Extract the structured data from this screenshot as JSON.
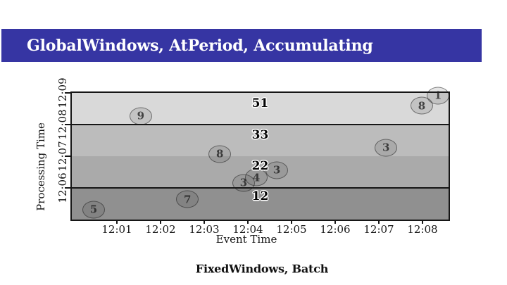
{
  "slide": {
    "title": "GlobalWindows, AtPeriod, Accumulating",
    "caption": "FixedWindows, Batch"
  },
  "theme": {
    "banner_color": "#3635a3",
    "line_color": "#161616",
    "background": "#ffffff"
  },
  "chart_data": {
    "type": "scatter",
    "xlabel": "Event Time",
    "ylabel": "Processing Time",
    "x_ticks": [
      "12:01",
      "12:02",
      "12:03",
      "12:04",
      "12:05",
      "12:06",
      "12:07",
      "12:08"
    ],
    "y_ticks": [
      "12:09",
      "12:08",
      "12:07",
      "12:06"
    ],
    "x_range": [
      "12:00",
      "12:08.6"
    ],
    "y_range": [
      "12:05",
      "12:09"
    ],
    "grid": "off",
    "panes": [
      {
        "sum": "51",
        "processing_span": "12:08–12:09",
        "color": "#d9d9d9",
        "label_fy": 0.083
      },
      {
        "sum": "33",
        "processing_span": "12:07–12:08",
        "color": "#bcbcbc",
        "label_fy": 0.333
      },
      {
        "sum": "22",
        "processing_span": "12:06–12:07",
        "color": "#aaaaaa",
        "label_fy": 0.578
      },
      {
        "sum": "12",
        "processing_span": "12:05–12:06",
        "color": "#909090",
        "label_fy": 0.817
      }
    ],
    "points": [
      {
        "value": "5",
        "event_time": "~12:00.5",
        "processing_time": "~12:05.3",
        "fx": 0.058,
        "fy": 0.922
      },
      {
        "value": "7",
        "event_time": "~12:02.6",
        "processing_time": "~12:05.6",
        "fx": 0.307,
        "fy": 0.839
      },
      {
        "value": "3",
        "event_time": "~12:03.9",
        "processing_time": "~12:06.2",
        "fx": 0.456,
        "fy": 0.711
      },
      {
        "value": "4",
        "event_time": "~12:04.2",
        "processing_time": "~12:06.3",
        "fx": 0.49,
        "fy": 0.667
      },
      {
        "value": "3",
        "event_time": "~12:04.7",
        "processing_time": "~12:06.6",
        "fx": 0.544,
        "fy": 0.611
      },
      {
        "value": "8",
        "event_time": "~12:03.4",
        "processing_time": "~12:07.1",
        "fx": 0.393,
        "fy": 0.483
      },
      {
        "value": "3",
        "event_time": "~12:07.2",
        "processing_time": "~12:07.3",
        "fx": 0.834,
        "fy": 0.433
      },
      {
        "value": "9",
        "event_time": "~12:01.5",
        "processing_time": "~12:08.3",
        "fx": 0.183,
        "fy": 0.183
      },
      {
        "value": "8",
        "event_time": "~12:08.0",
        "processing_time": "~12:08.6",
        "fx": 0.929,
        "fy": 0.1
      },
      {
        "value": "1",
        "event_time": "~12:08.4",
        "processing_time": "~12:08.9",
        "fx": 0.972,
        "fy": 0.022
      }
    ]
  }
}
